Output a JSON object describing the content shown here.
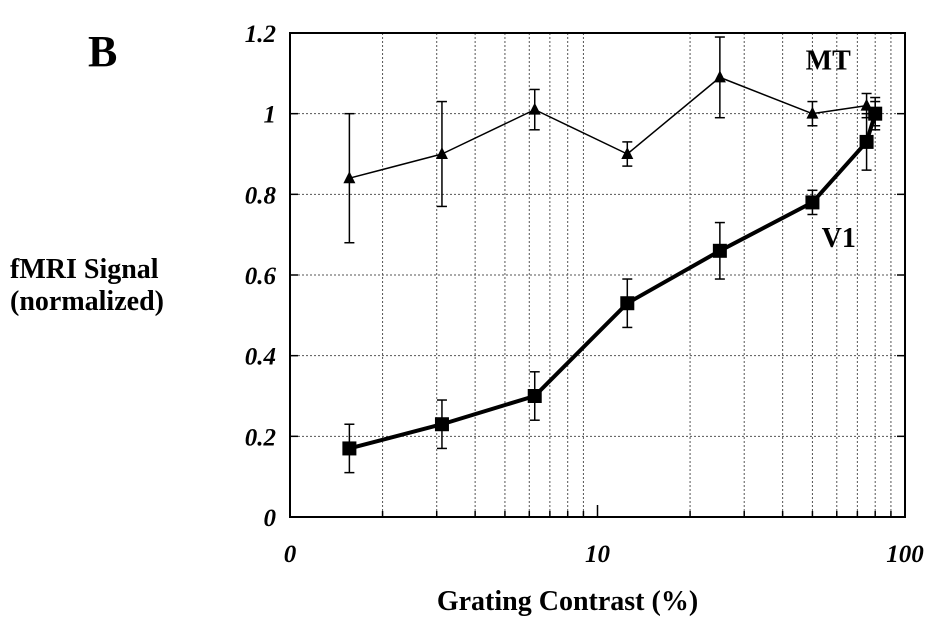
{
  "panel_label": "B",
  "chart_data": {
    "type": "line",
    "title": "",
    "xlabel": "Grating Contrast (%)",
    "ylabel": [
      "fMRI Signal",
      "(normalized)"
    ],
    "xscale": "log",
    "xlim": [
      1,
      100
    ],
    "ylim": [
      0,
      1.2
    ],
    "x_tick_labels": [
      "0",
      "10",
      "100"
    ],
    "y_ticks": [
      0,
      0.2,
      0.4,
      0.6,
      0.8,
      1,
      1.2
    ],
    "y_tick_labels": [
      "0",
      "0.2",
      "0.4",
      "0.6",
      "0.8",
      "1",
      "1.2"
    ],
    "grid": true,
    "series": [
      {
        "name": "MT",
        "marker": "triangle",
        "x": [
          1.56,
          3.12,
          6.25,
          12.5,
          25,
          50,
          75,
          80
        ],
        "y": [
          0.84,
          0.9,
          1.01,
          0.9,
          1.09,
          1.0,
          1.02,
          1.0
        ],
        "err": [
          0.16,
          0.13,
          0.05,
          0.03,
          0.1,
          0.03,
          0.03,
          0.04
        ]
      },
      {
        "name": "V1",
        "marker": "square",
        "x": [
          1.56,
          3.12,
          6.25,
          12.5,
          25,
          50,
          75,
          80
        ],
        "y": [
          0.17,
          0.23,
          0.3,
          0.53,
          0.66,
          0.78,
          0.93,
          1.0
        ],
        "err": [
          0.06,
          0.06,
          0.06,
          0.06,
          0.07,
          0.03,
          0.07,
          0.03
        ]
      }
    ]
  }
}
